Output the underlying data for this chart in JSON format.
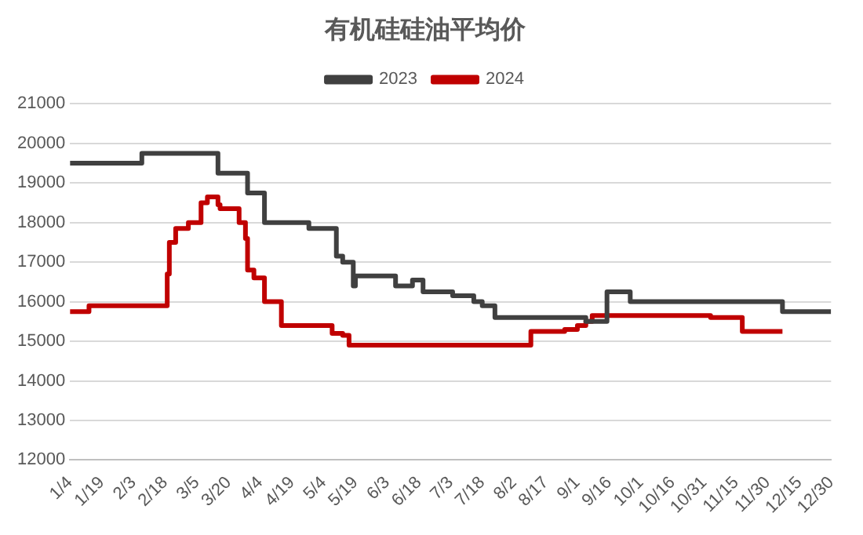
{
  "chart_data": {
    "type": "step",
    "title": "有机硅硅油平均价",
    "legend": "top",
    "grid": "y",
    "xlim": [
      "--01-04",
      "--12-30"
    ],
    "xticks": [
      {
        "value": "--01-04",
        "label": "1/4"
      },
      {
        "value": "--01-19",
        "label": "1/19"
      },
      {
        "value": "--02-03",
        "label": "2/3"
      },
      {
        "value": "--02-18",
        "label": "2/18"
      },
      {
        "value": "--03-05",
        "label": "3/5"
      },
      {
        "value": "--03-20",
        "label": "3/20"
      },
      {
        "value": "--04-04",
        "label": "4/4"
      },
      {
        "value": "--04-19",
        "label": "4/19"
      },
      {
        "value": "--05-04",
        "label": "5/4"
      },
      {
        "value": "--05-19",
        "label": "5/19"
      },
      {
        "value": "--06-03",
        "label": "6/3"
      },
      {
        "value": "--06-18",
        "label": "6/18"
      },
      {
        "value": "--07-03",
        "label": "7/3"
      },
      {
        "value": "--07-18",
        "label": "7/18"
      },
      {
        "value": "--08-02",
        "label": "8/2"
      },
      {
        "value": "--08-17",
        "label": "8/17"
      },
      {
        "value": "--09-01",
        "label": "9/1"
      },
      {
        "value": "--09-16",
        "label": "9/16"
      },
      {
        "value": "--10-01",
        "label": "10/1"
      },
      {
        "value": "--10-16",
        "label": "10/16"
      },
      {
        "value": "--10-31",
        "label": "10/31"
      },
      {
        "value": "--11-15",
        "label": "11/15"
      },
      {
        "value": "--11-30",
        "label": "11/30"
      },
      {
        "value": "--12-15",
        "label": "12/15"
      },
      {
        "value": "--12-30",
        "label": "12/30"
      }
    ],
    "ylim": [
      12000,
      21000
    ],
    "yticks": [
      12000,
      13000,
      14000,
      15000,
      16000,
      17000,
      18000,
      19000,
      20000,
      21000
    ],
    "series": [
      {
        "name": "2023",
        "color": "#404040",
        "x": [
          "--01-04",
          "--02-07",
          "--03-15",
          "--03-29",
          "--04-06",
          "--04-27",
          "--05-10",
          "--05-13",
          "--05-18",
          "--05-19",
          "--06-07",
          "--06-15",
          "--06-20",
          "--07-04",
          "--07-14",
          "--07-18",
          "--07-24",
          "--09-05",
          "--09-15",
          "--09-26",
          "--12-07",
          "--12-30"
        ],
        "values": [
          19500,
          19750,
          19250,
          18750,
          18000,
          17850,
          17150,
          17000,
          16400,
          16650,
          16400,
          16550,
          16250,
          16150,
          16000,
          15900,
          15600,
          15500,
          16250,
          16000,
          15750,
          15750
        ]
      },
      {
        "name": "2024",
        "color": "#c00000",
        "x": [
          "--01-04",
          "--01-13",
          "--02-19",
          "--02-20",
          "--02-23",
          "--03-01",
          "--03-07",
          "--03-10",
          "--03-15",
          "--03-16",
          "--03-25",
          "--03-28",
          "--03-29",
          "--04-01",
          "--04-06",
          "--04-14",
          "--05-08",
          "--05-13",
          "--05-16",
          "--08-10",
          "--08-26",
          "--09-01",
          "--09-05",
          "--09-08",
          "--11-03",
          "--11-18",
          "--12-07"
        ],
        "values": [
          15750,
          15900,
          16700,
          17500,
          17850,
          18000,
          18500,
          18650,
          18450,
          18350,
          18000,
          17600,
          16800,
          16600,
          16000,
          15400,
          15200,
          15150,
          14900,
          15250,
          15300,
          15400,
          15500,
          15650,
          15600,
          15250,
          15250
        ]
      }
    ]
  }
}
